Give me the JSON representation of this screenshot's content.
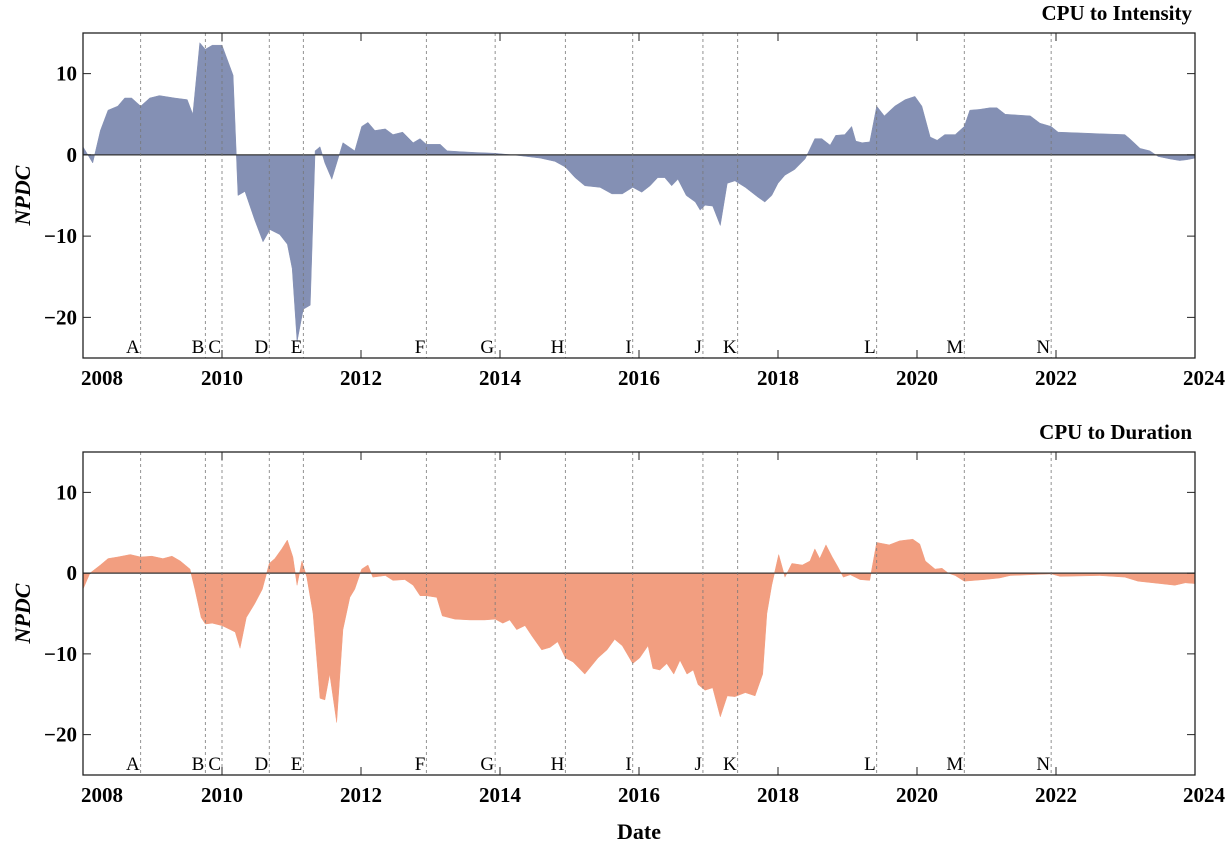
{
  "chart_data": [
    {
      "type": "area",
      "title": "CPU to Intensity",
      "ylabel": "NPDC",
      "color": "#8490b4",
      "xlim": [
        2008,
        2024
      ],
      "xticks": [
        2008,
        2010,
        2012,
        2014,
        2016,
        2018,
        2020,
        2022,
        2024
      ],
      "ylim": [
        -25,
        15
      ],
      "yticks": [
        {
          "value": -20,
          "label": "−20"
        },
        {
          "value": -10,
          "label": "−10"
        },
        0,
        10
      ],
      "events": {
        "x": [
          2008.83,
          2009.76,
          2010.0,
          2010.68,
          2011.17,
          2012.94,
          2013.93,
          2014.94,
          2015.91,
          2016.92,
          2017.42,
          2019.42,
          2020.68,
          2021.93
        ],
        "labels": [
          "A",
          "B",
          "C",
          "D",
          "E",
          "F",
          "G",
          "H",
          "I",
          "J",
          "K",
          "L",
          "M",
          "N"
        ]
      },
      "x": [
        2008.0,
        2008.14,
        2008.25,
        2008.36,
        2008.5,
        2008.6,
        2008.7,
        2008.83,
        2008.96,
        2009.1,
        2009.32,
        2009.5,
        2009.58,
        2009.68,
        2009.76,
        2009.86,
        2010.0,
        2010.16,
        2010.23,
        2010.33,
        2010.47,
        2010.59,
        2010.69,
        2010.83,
        2010.94,
        2011.01,
        2011.08,
        2011.17,
        2011.27,
        2011.34,
        2011.41,
        2011.48,
        2011.58,
        2011.74,
        2011.91,
        2012.01,
        2012.1,
        2012.2,
        2012.35,
        2012.46,
        2012.6,
        2012.75,
        2012.85,
        2012.94,
        2013.14,
        2013.24,
        2013.42,
        2013.64,
        2013.93,
        2014.29,
        2014.58,
        2014.79,
        2014.94,
        2015.08,
        2015.22,
        2015.44,
        2015.61,
        2015.76,
        2015.91,
        2016.04,
        2016.16,
        2016.27,
        2016.37,
        2016.47,
        2016.56,
        2016.68,
        2016.81,
        2016.88,
        2016.95,
        2017.06,
        2017.17,
        2017.27,
        2017.38,
        2017.53,
        2017.71,
        2017.81,
        2017.91,
        2018.0,
        2018.1,
        2018.24,
        2018.39,
        2018.53,
        2018.63,
        2018.75,
        2018.83,
        2018.96,
        2019.06,
        2019.12,
        2019.21,
        2019.32,
        2019.42,
        2019.53,
        2019.68,
        2019.83,
        2019.97,
        2020.07,
        2020.19,
        2020.29,
        2020.4,
        2020.55,
        2020.68,
        2020.76,
        2020.9,
        2021.05,
        2021.15,
        2021.27,
        2021.63,
        2021.77,
        2021.93,
        2022.03,
        2022.35,
        2022.63,
        2022.99,
        2023.06,
        2023.21,
        2023.35,
        2023.47,
        2023.64,
        2023.78,
        2023.88,
        2024.0
      ],
      "values": [
        1,
        -1,
        3,
        5.5,
        6,
        7,
        7,
        6,
        7,
        7.3,
        7,
        6.8,
        5,
        13.8,
        13,
        13.5,
        13.5,
        9.8,
        -5,
        -4.5,
        -8,
        -10.7,
        -9.2,
        -9.8,
        -11,
        -14,
        -23,
        -19,
        -18.5,
        0.5,
        1,
        -1,
        -3,
        1.5,
        0.5,
        3.5,
        4,
        3,
        3.2,
        2.5,
        2.8,
        1.5,
        2,
        1.3,
        1.3,
        0.5,
        0.4,
        0.3,
        0.2,
        -0.1,
        -0.4,
        -0.8,
        -1.5,
        -2.8,
        -3.8,
        -4,
        -4.8,
        -4.8,
        -4,
        -4.6,
        -3.8,
        -2.8,
        -2.8,
        -3.8,
        -3,
        -5,
        -5.8,
        -6.8,
        -6.2,
        -6.3,
        -8.7,
        -3.5,
        -3.2,
        -4,
        -5.2,
        -5.8,
        -5,
        -3.5,
        -2.5,
        -1.8,
        -0.5,
        2,
        2,
        1.2,
        2.4,
        2.5,
        3.5,
        1.7,
        1.5,
        1.6,
        6,
        4.8,
        6,
        6.8,
        7.2,
        6,
        2.2,
        1.8,
        2.5,
        2.5,
        3.5,
        5.5,
        5.6,
        5.8,
        5.8,
        5,
        4.8,
        3.9,
        3.5,
        2.8,
        2.7,
        2.6,
        2.5,
        2,
        0.8,
        0.5,
        -0.2,
        -0.5,
        -0.7,
        -0.6,
        -0.4
      ]
    },
    {
      "type": "area",
      "title": "CPU to Duration",
      "ylabel": "NPDC",
      "xlabel": "Date",
      "color": "#f29e80",
      "xlim": [
        2008,
        2024
      ],
      "xticks": [
        2008,
        2010,
        2012,
        2014,
        2016,
        2018,
        2020,
        2022,
        2024
      ],
      "ylim": [
        -25,
        15
      ],
      "yticks": [
        {
          "value": -20,
          "label": "−20"
        },
        {
          "value": -10,
          "label": "−10"
        },
        0,
        10
      ],
      "events": {
        "x": [
          2008.83,
          2009.76,
          2010.0,
          2010.68,
          2011.17,
          2012.94,
          2013.93,
          2014.94,
          2015.91,
          2016.92,
          2017.42,
          2019.42,
          2020.68,
          2021.93
        ],
        "labels": [
          "A",
          "B",
          "C",
          "D",
          "E",
          "F",
          "G",
          "H",
          "I",
          "J",
          "K",
          "L",
          "M",
          "N"
        ]
      },
      "x": [
        2008.0,
        2008.1,
        2008.25,
        2008.36,
        2008.5,
        2008.68,
        2008.83,
        2008.99,
        2009.15,
        2009.28,
        2009.4,
        2009.54,
        2009.61,
        2009.7,
        2009.76,
        2009.86,
        2010.0,
        2010.12,
        2010.19,
        2010.26,
        2010.35,
        2010.47,
        2010.58,
        2010.68,
        2010.76,
        2010.86,
        2010.94,
        2011.02,
        2011.08,
        2011.15,
        2011.22,
        2011.31,
        2011.41,
        2011.48,
        2011.55,
        2011.65,
        2011.74,
        2011.84,
        2011.91,
        2012.01,
        2012.1,
        2012.17,
        2012.35,
        2012.46,
        2012.63,
        2012.75,
        2012.85,
        2012.94,
        2013.09,
        2013.17,
        2013.35,
        2013.57,
        2013.78,
        2013.93,
        2014.04,
        2014.14,
        2014.24,
        2014.36,
        2014.46,
        2014.6,
        2014.72,
        2014.83,
        2014.94,
        2015.05,
        2015.22,
        2015.41,
        2015.54,
        2015.65,
        2015.76,
        2015.91,
        2016.01,
        2016.13,
        2016.2,
        2016.3,
        2016.4,
        2016.5,
        2016.59,
        2016.69,
        2016.78,
        2016.85,
        2016.95,
        2017.06,
        2017.17,
        2017.27,
        2017.38,
        2017.53,
        2017.67,
        2017.78,
        2017.84,
        2017.91,
        2018.01,
        2018.1,
        2018.2,
        2018.35,
        2018.46,
        2018.53,
        2018.6,
        2018.69,
        2018.78,
        2018.86,
        2018.94,
        2019.04,
        2019.11,
        2019.18,
        2019.32,
        2019.42,
        2019.6,
        2019.75,
        2019.94,
        2020.04,
        2020.12,
        2020.26,
        2020.36,
        2020.45,
        2020.55,
        2020.68,
        2020.97,
        2021.19,
        2021.34,
        2021.93,
        2022.06,
        2022.63,
        2022.99,
        2023.18,
        2023.5,
        2023.71,
        2023.86,
        2024.0
      ],
      "values": [
        -2,
        0,
        1,
        1.8,
        2,
        2.3,
        2,
        2.1,
        1.8,
        2.1,
        1.5,
        0.5,
        -2,
        -5.5,
        -6.3,
        -6.2,
        -6.5,
        -7,
        -7.3,
        -9.3,
        -5.5,
        -3.8,
        -2,
        1.2,
        1.8,
        3,
        4.1,
        2,
        -1.5,
        1.5,
        -0.5,
        -5,
        -15.5,
        -15.7,
        -12.5,
        -18.5,
        -7,
        -3,
        -2,
        0.5,
        1,
        -0.5,
        -0.3,
        -0.9,
        -0.8,
        -1.5,
        -2.8,
        -2.8,
        -3,
        -5.3,
        -5.7,
        -5.8,
        -5.8,
        -5.7,
        -6.2,
        -5.8,
        -7,
        -6.5,
        -7.8,
        -9.5,
        -9.2,
        -8.5,
        -10.5,
        -11,
        -12.5,
        -10.5,
        -9.5,
        -8.2,
        -9,
        -11.2,
        -10.5,
        -9,
        -11.8,
        -12,
        -11.2,
        -12.5,
        -10.8,
        -12.5,
        -12,
        -13.8,
        -14.5,
        -14.2,
        -17.8,
        -15.2,
        -15.3,
        -14.8,
        -15.2,
        -12.5,
        -5,
        -1.5,
        2.3,
        -0.5,
        1.2,
        1,
        1.5,
        3,
        1.8,
        3.5,
        2,
        0.8,
        -0.5,
        -0.2,
        -0.5,
        -0.8,
        -0.9,
        3.8,
        3.5,
        4,
        4.2,
        3.6,
        1.5,
        0.5,
        0.6,
        0,
        -0.3,
        -1,
        -0.8,
        -0.6,
        -0.3,
        -0.1,
        -0.4,
        -0.3,
        -0.5,
        -1,
        -1.3,
        -1.5,
        -1.2,
        -1.3
      ]
    }
  ]
}
